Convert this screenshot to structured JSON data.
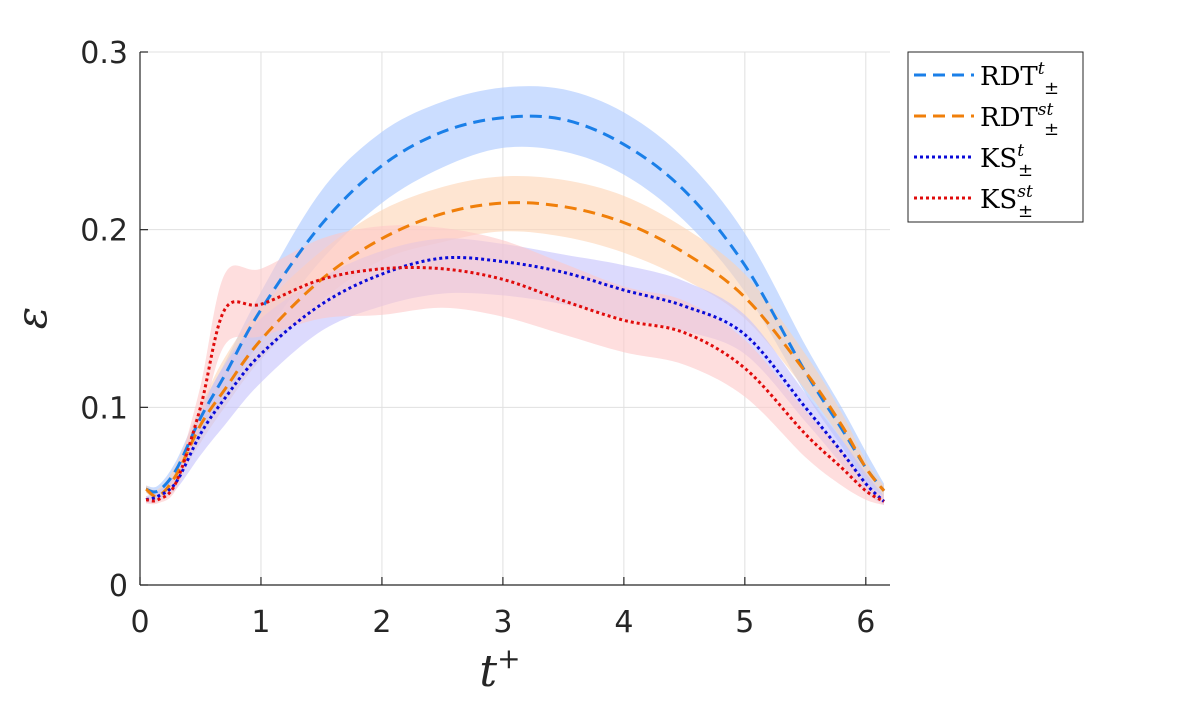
{
  "chart_data": {
    "type": "line",
    "title": "",
    "xlabel": "t",
    "xlabel_sup": "+",
    "ylabel": "ε",
    "xlim": [
      0,
      6.2
    ],
    "ylim": [
      0,
      0.3
    ],
    "xticks": [
      0,
      1,
      2,
      3,
      4,
      5,
      6
    ],
    "yticks": [
      0,
      0.1,
      0.2,
      0.3
    ],
    "xtick_labels": [
      "0",
      "1",
      "2",
      "3",
      "4",
      "5",
      "6"
    ],
    "ytick_labels": [
      "0",
      "0.1",
      "0.2",
      "0.3"
    ],
    "grid": true,
    "legend_position": "outside top-right",
    "x": [
      0.05,
      0.15,
      0.3,
      0.5,
      0.7,
      1.0,
      1.5,
      2.0,
      2.5,
      3.0,
      3.5,
      4.0,
      4.5,
      5.0,
      5.5,
      5.8,
      6.0,
      6.15
    ],
    "series": [
      {
        "name": "RDT",
        "sup": "t",
        "sub": "±",
        "style": "dashed",
        "color": "#1a7fe8",
        "band_color": "#a8c6ff",
        "values": [
          0.054,
          0.053,
          0.065,
          0.094,
          0.118,
          0.155,
          0.203,
          0.236,
          0.255,
          0.263,
          0.262,
          0.248,
          0.222,
          0.18,
          0.12,
          0.088,
          0.066,
          0.053
        ],
        "band_low": [
          0.052,
          0.05,
          0.061,
          0.085,
          0.105,
          0.138,
          0.183,
          0.215,
          0.235,
          0.246,
          0.244,
          0.231,
          0.205,
          0.165,
          0.108,
          0.078,
          0.058,
          0.05
        ],
        "band_high": [
          0.056,
          0.056,
          0.07,
          0.1,
          0.125,
          0.165,
          0.222,
          0.255,
          0.272,
          0.28,
          0.279,
          0.266,
          0.24,
          0.198,
          0.135,
          0.1,
          0.075,
          0.057
        ]
      },
      {
        "name": "RDT",
        "sup": "st",
        "sub": "±",
        "style": "dashed",
        "color": "#f07f0a",
        "band_color": "#fdd3b4",
        "values": [
          0.054,
          0.05,
          0.062,
          0.09,
          0.11,
          0.138,
          0.172,
          0.195,
          0.209,
          0.215,
          0.213,
          0.204,
          0.187,
          0.162,
          0.12,
          0.09,
          0.066,
          0.053
        ],
        "band_low": [
          0.052,
          0.048,
          0.058,
          0.08,
          0.1,
          0.127,
          0.16,
          0.183,
          0.193,
          0.199,
          0.196,
          0.187,
          0.172,
          0.15,
          0.11,
          0.082,
          0.06,
          0.05
        ],
        "band_high": [
          0.056,
          0.054,
          0.068,
          0.1,
          0.128,
          0.156,
          0.188,
          0.211,
          0.224,
          0.23,
          0.228,
          0.219,
          0.201,
          0.175,
          0.13,
          0.097,
          0.07,
          0.056
        ]
      },
      {
        "name": "KS",
        "sup": "t",
        "sub": "±",
        "style": "dotted",
        "color": "#0a0ad8",
        "band_color": "#c5c2fb",
        "values": [
          0.048,
          0.05,
          0.058,
          0.085,
          0.105,
          0.13,
          0.158,
          0.175,
          0.184,
          0.182,
          0.176,
          0.166,
          0.157,
          0.141,
          0.1,
          0.075,
          0.057,
          0.047
        ],
        "band_low": [
          0.046,
          0.047,
          0.054,
          0.073,
          0.09,
          0.114,
          0.143,
          0.157,
          0.164,
          0.163,
          0.158,
          0.15,
          0.143,
          0.13,
          0.092,
          0.068,
          0.052,
          0.045
        ],
        "band_high": [
          0.05,
          0.053,
          0.064,
          0.098,
          0.124,
          0.15,
          0.173,
          0.188,
          0.195,
          0.192,
          0.186,
          0.18,
          0.171,
          0.152,
          0.108,
          0.082,
          0.063,
          0.05
        ]
      },
      {
        "name": "KS",
        "sup": "st",
        "sub": "±",
        "style": "dotted",
        "color": "#e00b0b",
        "band_color": "#fdc8c8",
        "values": [
          0.048,
          0.048,
          0.058,
          0.1,
          0.155,
          0.158,
          0.172,
          0.178,
          0.178,
          0.172,
          0.16,
          0.149,
          0.142,
          0.122,
          0.085,
          0.066,
          0.053,
          0.047
        ],
        "band_low": [
          0.046,
          0.046,
          0.054,
          0.09,
          0.135,
          0.14,
          0.15,
          0.152,
          0.156,
          0.151,
          0.141,
          0.131,
          0.124,
          0.106,
          0.072,
          0.056,
          0.048,
          0.045
        ],
        "band_high": [
          0.05,
          0.05,
          0.064,
          0.112,
          0.175,
          0.178,
          0.195,
          0.202,
          0.201,
          0.194,
          0.181,
          0.168,
          0.16,
          0.138,
          0.098,
          0.076,
          0.058,
          0.05
        ]
      }
    ]
  }
}
